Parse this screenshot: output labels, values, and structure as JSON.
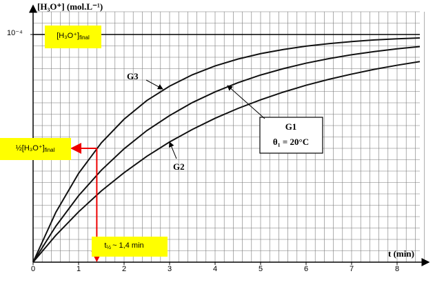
{
  "chart_data": {
    "type": "line",
    "y_label": "[H₃O⁺] (mol.L⁻¹)",
    "x_label": "t (min)",
    "x": [
      0,
      0.5,
      1,
      1.5,
      2,
      2.5,
      3,
      3.5,
      4,
      4.5,
      5,
      5.5,
      6,
      6.5,
      7,
      7.5,
      8,
      8.5
    ],
    "series": [
      {
        "name": "G3",
        "color": "#111111",
        "values": [
          0,
          2.19e-05,
          3.9e-05,
          5.24e-05,
          6.28e-05,
          7.1e-05,
          7.73e-05,
          8.23e-05,
          8.62e-05,
          8.92e-05,
          9.16e-05,
          9.34e-05,
          9.49e-05,
          9.6e-05,
          9.69e-05,
          9.76e-05,
          9.81e-05,
          9.85e-05
        ]
      },
      {
        "name": "G1",
        "note": "θ₁ = 20°C",
        "color": "#111111",
        "values": [
          0,
          1.58e-05,
          2.92e-05,
          4.04e-05,
          4.98e-05,
          5.78e-05,
          6.44e-05,
          7.01e-05,
          7.48e-05,
          7.88e-05,
          8.22e-05,
          8.5e-05,
          8.74e-05,
          8.94e-05,
          9.11e-05,
          9.25e-05,
          9.37e-05,
          9.47e-05
        ]
      },
      {
        "name": "G2",
        "color": "#111111",
        "values": [
          0,
          1.18e-05,
          2.21e-05,
          3.13e-05,
          3.93e-05,
          4.65e-05,
          5.28e-05,
          5.83e-05,
          6.32e-05,
          6.75e-05,
          7.13e-05,
          7.47e-05,
          7.77e-05,
          8.03e-05,
          8.26e-05,
          8.47e-05,
          8.65e-05,
          8.81e-05
        ]
      }
    ],
    "xlim": [
      0,
      8.5
    ],
    "ylim": [
      0,
      0.00011
    ],
    "xticks": [
      0,
      1,
      2,
      3,
      4,
      5,
      6,
      7,
      8
    ],
    "yticks": [
      {
        "value": 0.0001,
        "label": "10⁻⁴"
      }
    ],
    "grid": true,
    "grid_x_step": 0.2,
    "grid_y_step": 5e-06,
    "annotations": [
      {
        "text": "[H₃O⁺]",
        "sub": "final",
        "y": 0.0001
      },
      {
        "text": "½[H₃O⁺]",
        "sub": "final",
        "x": 1.4,
        "y": 5e-05
      },
      {
        "text": "t",
        "sub": "½",
        "rest": "~ 1,4 min"
      }
    ]
  }
}
